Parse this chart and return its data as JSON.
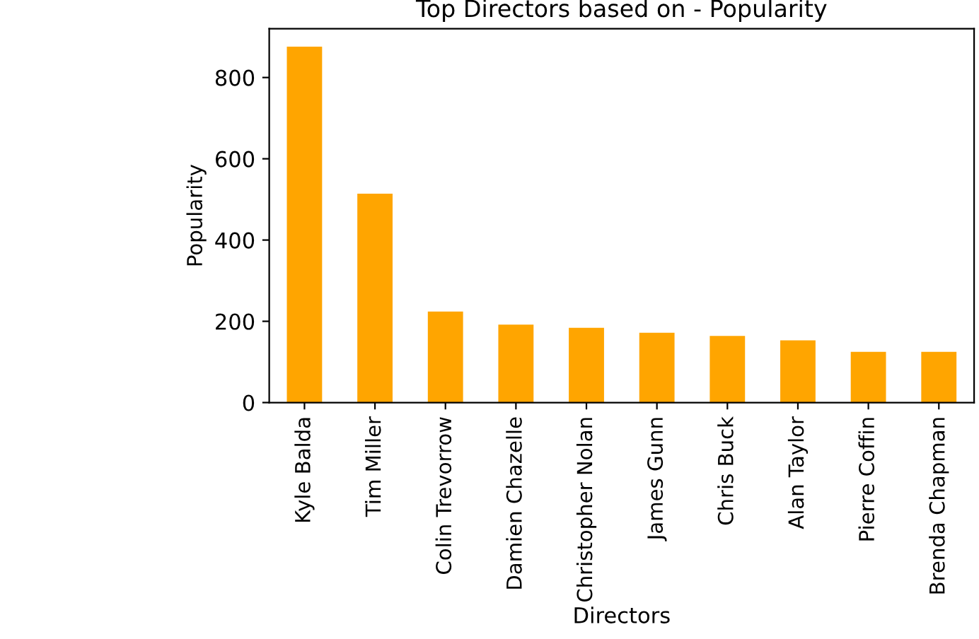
{
  "chart_data": {
    "type": "bar",
    "title": "Top Directors based on - Popularity",
    "xlabel": "Directors",
    "ylabel": "Popularity",
    "categories": [
      "Kyle Balda",
      "Tim Miller",
      "Colin Trevorrow",
      "Damien Chazelle",
      "Christopher Nolan",
      "James Gunn",
      "Chris Buck",
      "Alan Taylor",
      "Pierre Coffin",
      "Brenda Chapman"
    ],
    "values": [
      876,
      514,
      224,
      192,
      184,
      172,
      164,
      153,
      125,
      125
    ],
    "color": "#ffa500",
    "ylim": [
      0,
      920
    ],
    "yticks": [
      0,
      200,
      400,
      600,
      800
    ],
    "grid": false,
    "legend": false
  }
}
